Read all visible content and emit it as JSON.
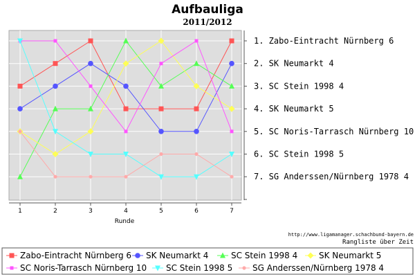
{
  "chart_data": {
    "type": "line",
    "title": "Aufbauliga",
    "subtitle": "2011/2012",
    "xlabel": "Runde",
    "x": [
      1,
      2,
      3,
      4,
      5,
      6,
      7
    ],
    "ylim": [
      1,
      7
    ],
    "y_inverted": true,
    "grid": true,
    "legend_position": "bottom",
    "series": [
      {
        "name": "Zabo-Eintracht Nürnberg 6",
        "color": "#ff5555",
        "marker": "square",
        "values": [
          3,
          2,
          1,
          4,
          4,
          4,
          1
        ]
      },
      {
        "name": "SK Neumarkt 4",
        "color": "#5555ff",
        "marker": "circle",
        "values": [
          4,
          3,
          2,
          3,
          5,
          5,
          2
        ]
      },
      {
        "name": "SC Stein 1998 4",
        "color": "#55ff55",
        "marker": "triangle-up",
        "values": [
          7,
          4,
          4,
          1,
          3,
          2,
          3
        ]
      },
      {
        "name": "SK Neumarkt 5",
        "color": "#ffff55",
        "marker": "diamond",
        "values": [
          5,
          6,
          5,
          2,
          1,
          3,
          4
        ]
      },
      {
        "name": "SC Noris-Tarrasch Nürnberg 10",
        "color": "#ff55ff",
        "marker": "square-small",
        "values": [
          1,
          1,
          3,
          5,
          2,
          1,
          5
        ]
      },
      {
        "name": "SC Stein 1998 5",
        "color": "#55ffff",
        "marker": "triangle-down",
        "values": [
          1,
          5,
          6,
          6,
          7,
          7,
          6
        ]
      },
      {
        "name": "SG Anderssen/Nürnberg 1978 4",
        "color": "#ffaaaa",
        "marker": "circle-small",
        "values": [
          5,
          7,
          7,
          7,
          6,
          6,
          7
        ]
      }
    ],
    "rank_labels": [
      "1. Zabo-Eintracht Nürnberg 6",
      "2. SK Neumarkt 4",
      "3. SC Stein 1998 4",
      "4. SK Neumarkt 5",
      "5. SC Noris-Tarrasch Nürnberg 10",
      "6. SC Stein 1998 5",
      "7. SG Anderssen/Nürnberg 1978 4"
    ],
    "source": "http://www.ligamanager.schachbund-bayern.de",
    "note": "Rangliste über Zeit"
  }
}
